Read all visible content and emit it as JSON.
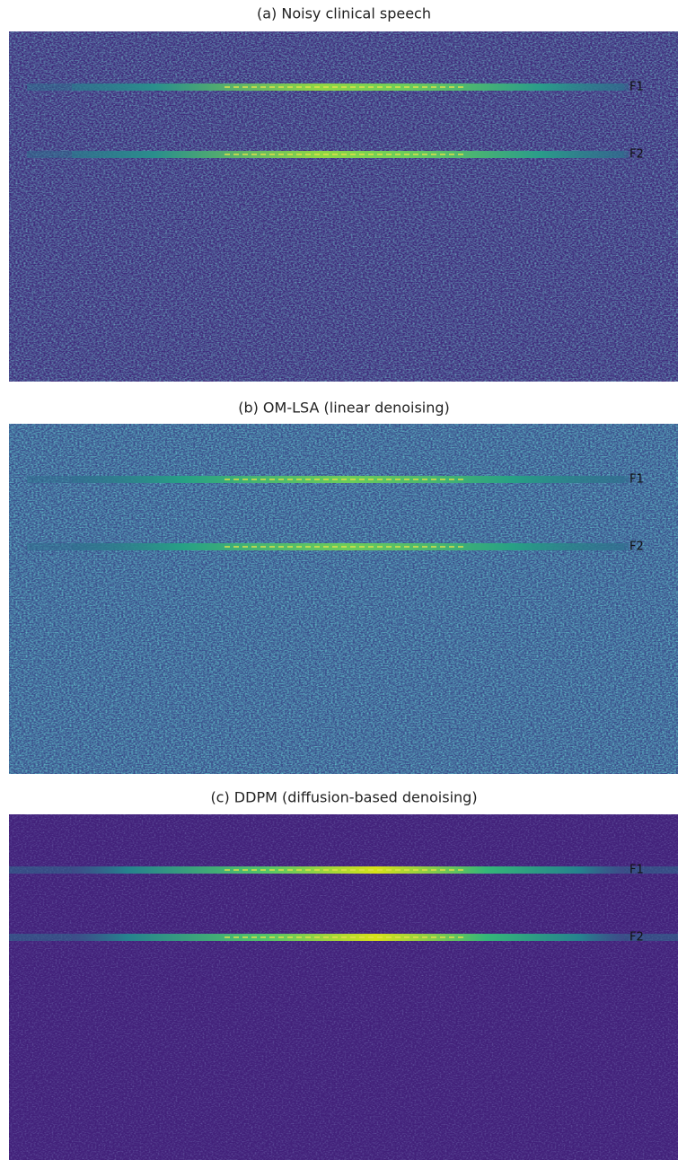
{
  "panels": [
    {
      "title": "(a) Noisy clinical speech",
      "formants": [
        {
          "label": "F1"
        },
        {
          "label": "F2"
        }
      ]
    },
    {
      "title": "(b) OM-LSA (linear denoising)",
      "formants": [
        {
          "label": "F1"
        },
        {
          "label": "F2"
        }
      ]
    },
    {
      "title": "(c) DDPM (diffusion-based denoising)",
      "formants": [
        {
          "label": "F1"
        },
        {
          "label": "F2"
        }
      ]
    }
  ]
}
